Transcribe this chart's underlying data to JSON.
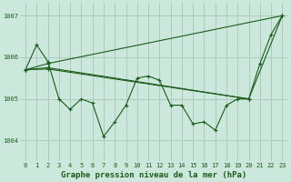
{
  "title": "Graphe pression niveau de la mer (hPa)",
  "background_color": "#cce8dc",
  "grid_color": "#aaccbc",
  "line_color": "#1a5c1a",
  "ylim": [
    1003.5,
    1007.3
  ],
  "yticks": [
    1004,
    1005,
    1006,
    1007
  ],
  "xlim": [
    -0.5,
    23.5
  ],
  "xticks": [
    0,
    1,
    2,
    3,
    4,
    5,
    6,
    7,
    8,
    9,
    10,
    11,
    12,
    13,
    14,
    15,
    16,
    17,
    18,
    19,
    20,
    21,
    22,
    23
  ],
  "series1_x": [
    0,
    1,
    2,
    3,
    4,
    5,
    6,
    7,
    8,
    9,
    10,
    11,
    12,
    13,
    14,
    15,
    16,
    17,
    18,
    19,
    20,
    21,
    22,
    23
  ],
  "series1_y": [
    1005.7,
    1006.3,
    1005.9,
    1005.0,
    1004.75,
    1005.0,
    1004.9,
    1004.1,
    1004.45,
    1004.85,
    1005.5,
    1005.55,
    1005.45,
    1004.85,
    1004.85,
    1004.4,
    1004.45,
    1004.25,
    1004.85,
    1005.0,
    1005.0,
    1005.85,
    1006.55,
    1007.0
  ],
  "series2_x": [
    0,
    2,
    23
  ],
  "series2_y": [
    1005.7,
    1005.85,
    1007.0
  ],
  "series3_x": [
    0,
    2,
    20,
    23
  ],
  "series3_y": [
    1005.7,
    1005.75,
    1005.0,
    1007.0
  ],
  "series4_x": [
    0,
    2,
    20
  ],
  "series4_y": [
    1005.7,
    1005.72,
    1005.0
  ],
  "title_fontsize": 6.5,
  "tick_fontsize": 5.0
}
